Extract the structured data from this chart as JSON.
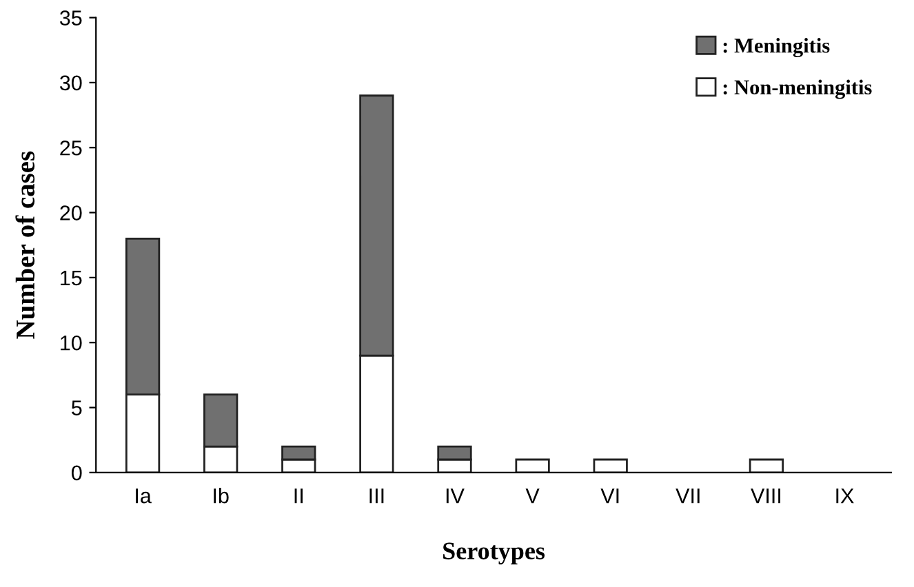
{
  "chart_data": {
    "type": "bar",
    "stacked": true,
    "xlabel": "Serotypes",
    "ylabel": "Number of cases",
    "categories": [
      "Ia",
      "Ib",
      "II",
      "III",
      "IV",
      "V",
      "VI",
      "VII",
      "VIII",
      "IX"
    ],
    "series": [
      {
        "name": ": Non-meningitis",
        "color": "#ffffff",
        "values": [
          6,
          2,
          1,
          9,
          1,
          1,
          1,
          0,
          1,
          0
        ]
      },
      {
        "name": ": Meningitis",
        "color": "#707070",
        "values": [
          12,
          4,
          1,
          20,
          1,
          0,
          0,
          0,
          0,
          0
        ]
      }
    ],
    "ylim": [
      0,
      35
    ],
    "yticks": [
      0,
      5,
      10,
      15,
      20,
      25,
      30,
      35
    ],
    "grid": false,
    "legend": "top right"
  }
}
